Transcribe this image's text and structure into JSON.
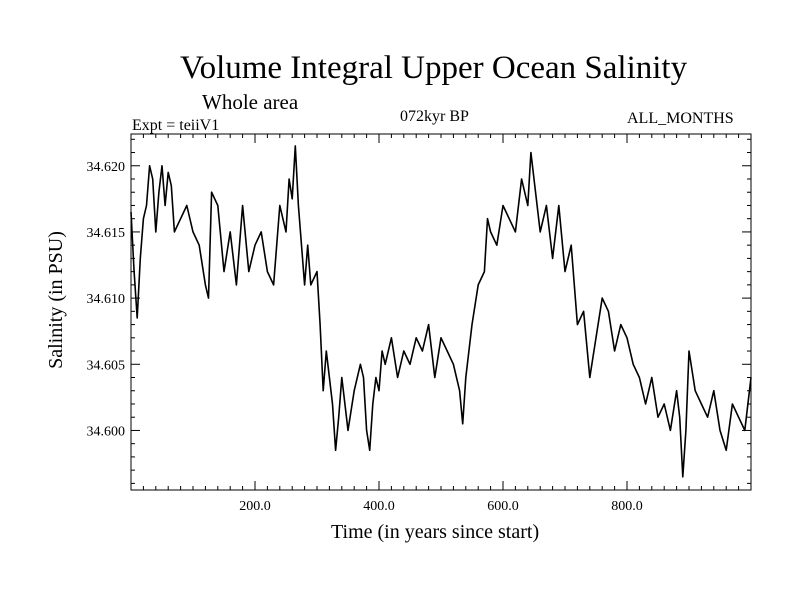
{
  "chart_data": {
    "type": "line",
    "title": "Volume Integral Upper Ocean Salinity",
    "subtitle": "Whole area",
    "annotations": {
      "experiment": "Expt = teiiV1",
      "period": "072kyr BP",
      "months": "ALL_MONTHS"
    },
    "xlabel": "Time (in years since start)",
    "ylabel": "Salinity (in PSU)",
    "xlim": [
      0,
      1000
    ],
    "ylim": [
      34.5955,
      34.6224
    ],
    "x_ticks": [
      200,
      400,
      600,
      800
    ],
    "x_tick_labels": [
      "200.0",
      "400.0",
      "600.0",
      "800.0"
    ],
    "y_ticks": [
      34.6,
      34.605,
      34.61,
      34.615,
      34.62
    ],
    "y_tick_labels": [
      "34.600",
      "34.605",
      "34.610",
      "34.615",
      "34.620"
    ],
    "grid": false,
    "series": [
      {
        "color": "#000000",
        "x": [
          0,
          5,
          10,
          15,
          20,
          25,
          30,
          35,
          40,
          45,
          50,
          55,
          60,
          65,
          70,
          80,
          90,
          100,
          110,
          120,
          125,
          130,
          140,
          150,
          160,
          170,
          180,
          190,
          200,
          210,
          220,
          230,
          240,
          250,
          255,
          260,
          265,
          270,
          280,
          285,
          290,
          300,
          305,
          310,
          315,
          320,
          325,
          330,
          335,
          340,
          350,
          360,
          370,
          375,
          380,
          385,
          390,
          395,
          400,
          405,
          410,
          420,
          430,
          440,
          450,
          460,
          470,
          480,
          490,
          500,
          510,
          520,
          530,
          535,
          540,
          550,
          560,
          570,
          575,
          580,
          590,
          600,
          610,
          620,
          630,
          640,
          645,
          650,
          660,
          670,
          680,
          690,
          700,
          710,
          720,
          730,
          740,
          750,
          760,
          770,
          780,
          790,
          800,
          810,
          820,
          830,
          840,
          850,
          860,
          870,
          880,
          885,
          890,
          895,
          900,
          910,
          920,
          930,
          940,
          950,
          960,
          970,
          980,
          990,
          1000
        ],
        "values": [
          34.6165,
          34.612,
          34.6085,
          34.613,
          34.616,
          34.617,
          34.62,
          34.619,
          34.615,
          34.618,
          34.62,
          34.617,
          34.6195,
          34.6185,
          34.615,
          34.616,
          34.617,
          34.615,
          34.614,
          34.611,
          34.61,
          34.618,
          34.617,
          34.612,
          34.615,
          34.611,
          34.617,
          34.612,
          34.614,
          34.615,
          34.612,
          34.611,
          34.617,
          34.615,
          34.619,
          34.6175,
          34.6215,
          34.617,
          34.611,
          34.614,
          34.611,
          34.612,
          34.608,
          34.603,
          34.606,
          34.604,
          34.602,
          34.5985,
          34.601,
          34.604,
          34.6,
          34.603,
          34.605,
          34.604,
          34.6,
          34.5985,
          34.602,
          34.604,
          34.603,
          34.606,
          34.605,
          34.607,
          34.604,
          34.606,
          34.605,
          34.607,
          34.606,
          34.608,
          34.604,
          34.607,
          34.606,
          34.605,
          34.603,
          34.6005,
          34.604,
          34.608,
          34.611,
          34.612,
          34.616,
          34.615,
          34.614,
          34.617,
          34.616,
          34.615,
          34.619,
          34.617,
          34.621,
          34.619,
          34.615,
          34.617,
          34.613,
          34.617,
          34.612,
          34.614,
          34.608,
          34.609,
          34.604,
          34.607,
          34.61,
          34.609,
          34.606,
          34.608,
          34.607,
          34.605,
          34.604,
          34.602,
          34.604,
          34.601,
          34.602,
          34.6,
          34.603,
          34.601,
          34.5965,
          34.6,
          34.606,
          34.603,
          34.602,
          34.601,
          34.603,
          34.6,
          34.5985,
          34.602,
          34.601,
          34.6,
          34.604
        ]
      }
    ]
  }
}
